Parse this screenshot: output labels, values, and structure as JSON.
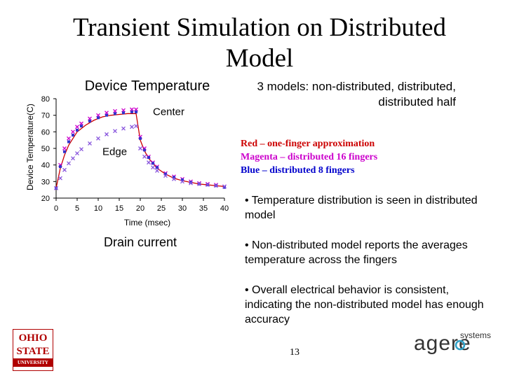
{
  "slide": {
    "title": "Transient Simulation on Distributed Model",
    "models_note": "3 models: non-distributed, distributed, distributed half",
    "legend": {
      "red": "Red – one-finger approximation",
      "magenta": "Magenta – distributed 16 fingers",
      "blue": "Blue – distributed 8 fingers"
    },
    "bullets": [
      "• Temperature distribution is seen in distributed model",
      "• Non-distributed model reports the averages temperature across the fingers",
      "• Overall electrical behavior is consistent, indicating the non-distributed model has enough accuracy"
    ],
    "drain_caption": "Drain current",
    "page_number": "13",
    "logos": {
      "osu_line1": "OHIO",
      "osu_line2": "STATE",
      "osu_line3": "UNIVERSITY",
      "agere_name": "agere",
      "agere_suffix": "systems"
    }
  },
  "colors": {
    "red": "#cc0000",
    "magenta": "#cc00cc",
    "blue": "#3333cc",
    "purple": "#8855dd"
  },
  "chart_data": {
    "type": "line",
    "title": "Device Temperature",
    "xlabel": "Time (msec)",
    "ylabel": "Device Temperature(C)",
    "xlim": [
      0,
      40
    ],
    "ylim": [
      20,
      80
    ],
    "xticks": [
      0,
      5,
      10,
      15,
      20,
      25,
      30,
      35,
      40
    ],
    "yticks": [
      20,
      30,
      40,
      50,
      60,
      70,
      80
    ],
    "annotations": [
      {
        "text": "Center",
        "x": 23,
        "y": 70
      },
      {
        "text": "Edge",
        "x": 11,
        "y": 46
      }
    ],
    "series": [
      {
        "color": "red",
        "x": [
          0,
          1,
          2,
          3,
          4,
          5,
          7,
          9,
          11,
          13,
          15,
          17,
          18,
          19,
          20,
          21,
          22,
          24,
          26,
          28,
          30,
          32,
          34,
          36,
          38,
          40
        ],
        "y": [
          26,
          38,
          46,
          52,
          56,
          60,
          64,
          67,
          69,
          70,
          70.5,
          71,
          71,
          71,
          55,
          48.5,
          44,
          38,
          34.5,
          32,
          30.5,
          29.5,
          28.5,
          28,
          27.5,
          27
        ]
      },
      {
        "color": "magenta",
        "x": [
          0,
          1,
          2,
          3,
          4,
          5,
          6,
          8,
          10,
          12,
          14,
          16,
          18,
          19,
          20,
          21,
          22,
          23,
          24,
          26,
          28,
          30,
          32,
          34,
          36,
          38,
          40
        ],
        "y": [
          26,
          40,
          50,
          56,
          60,
          63,
          65,
          68,
          70,
          71.5,
          72.5,
          73,
          73.5,
          73.5,
          57,
          50,
          45,
          41.5,
          39,
          35,
          33,
          31.5,
          30,
          29,
          28.5,
          28,
          27
        ]
      },
      {
        "color": "blue",
        "x": [
          0,
          1,
          2,
          3,
          4,
          5,
          6,
          8,
          10,
          12,
          14,
          16,
          18,
          19,
          20,
          21,
          22,
          23,
          24,
          26,
          28,
          30,
          32,
          34,
          36,
          38,
          40
        ],
        "y": [
          26,
          39,
          48,
          54,
          58,
          61,
          63.5,
          66.5,
          68.5,
          70,
          71,
          71.5,
          72,
          72,
          56,
          49,
          44.5,
          41,
          38.5,
          34.5,
          32.5,
          31,
          29.5,
          28.5,
          28,
          27.5,
          26.5
        ]
      },
      {
        "color": "purple",
        "x": [
          0,
          1,
          2,
          3,
          4,
          5,
          6,
          8,
          10,
          12,
          14,
          16,
          18,
          19,
          20,
          21,
          22,
          23,
          24,
          26,
          28,
          30,
          32,
          34,
          36,
          38,
          40
        ],
        "y": [
          26,
          32,
          37,
          41,
          44,
          47,
          49.5,
          53,
          56,
          58.5,
          60.5,
          62,
          63,
          63.5,
          50,
          45,
          41.5,
          38.5,
          36.5,
          33.5,
          31.5,
          30,
          29,
          28.5,
          28,
          27.5,
          27
        ]
      }
    ]
  }
}
